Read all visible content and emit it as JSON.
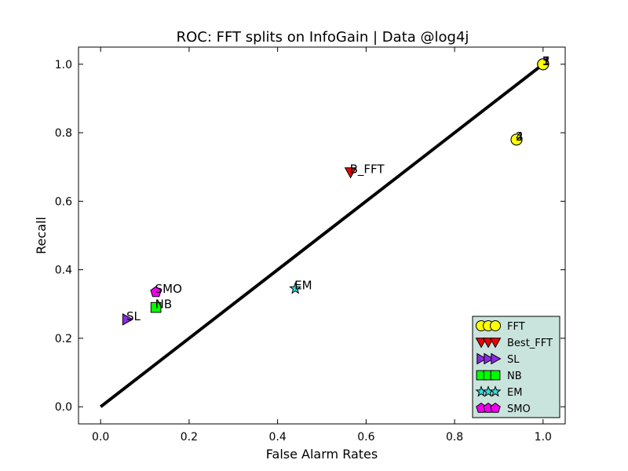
{
  "chart_data": {
    "type": "scatter",
    "title": "ROC: FFT splits on InfoGain  |  Data @log4j",
    "xlabel": "False Alarm Rates",
    "ylabel": "Recall",
    "xlim": [
      -0.05,
      1.05
    ],
    "ylim": [
      -0.05,
      1.05
    ],
    "xticks": [
      "0.0",
      "0.2",
      "0.4",
      "0.6",
      "0.8",
      "1.0"
    ],
    "yticks": [
      "0.0",
      "0.2",
      "0.4",
      "0.6",
      "0.8",
      "1.0"
    ],
    "grid": false,
    "legend_position": "lower-right",
    "diagonal": {
      "x": [
        0,
        1
      ],
      "y": [
        0,
        1
      ]
    },
    "series": [
      {
        "name": "FFT",
        "marker": "circle",
        "color": "#ffff00",
        "points": [
          {
            "x": 1.0,
            "y": 1.0,
            "label": "1"
          },
          {
            "x": 1.0,
            "y": 1.0,
            "label": "3"
          },
          {
            "x": 1.0,
            "y": 1.0,
            "label": "5"
          },
          {
            "x": 1.0,
            "y": 1.0,
            "label": "7"
          },
          {
            "x": 0.94,
            "y": 0.78,
            "label": "2"
          },
          {
            "x": 0.94,
            "y": 0.78,
            "label": "4"
          }
        ]
      },
      {
        "name": "Best_FFT",
        "marker": "triangle-down",
        "color": "#ee0000",
        "points": [
          {
            "x": 0.565,
            "y": 0.685,
            "label": "B_FFT"
          }
        ]
      },
      {
        "name": "SL",
        "marker": "triangle-right",
        "color": "#8a2be2",
        "points": [
          {
            "x": 0.06,
            "y": 0.255,
            "label": "SL"
          }
        ]
      },
      {
        "name": "NB",
        "marker": "square",
        "color": "#00ff00",
        "points": [
          {
            "x": 0.125,
            "y": 0.29,
            "label": "NB"
          }
        ]
      },
      {
        "name": "EM",
        "marker": "star",
        "color": "#33dddd",
        "points": [
          {
            "x": 0.44,
            "y": 0.345,
            "label": "EM"
          }
        ]
      },
      {
        "name": "SMO",
        "marker": "pentagon",
        "color": "#ee00ee",
        "points": [
          {
            "x": 0.125,
            "y": 0.335,
            "label": "SMO"
          }
        ]
      }
    ]
  }
}
